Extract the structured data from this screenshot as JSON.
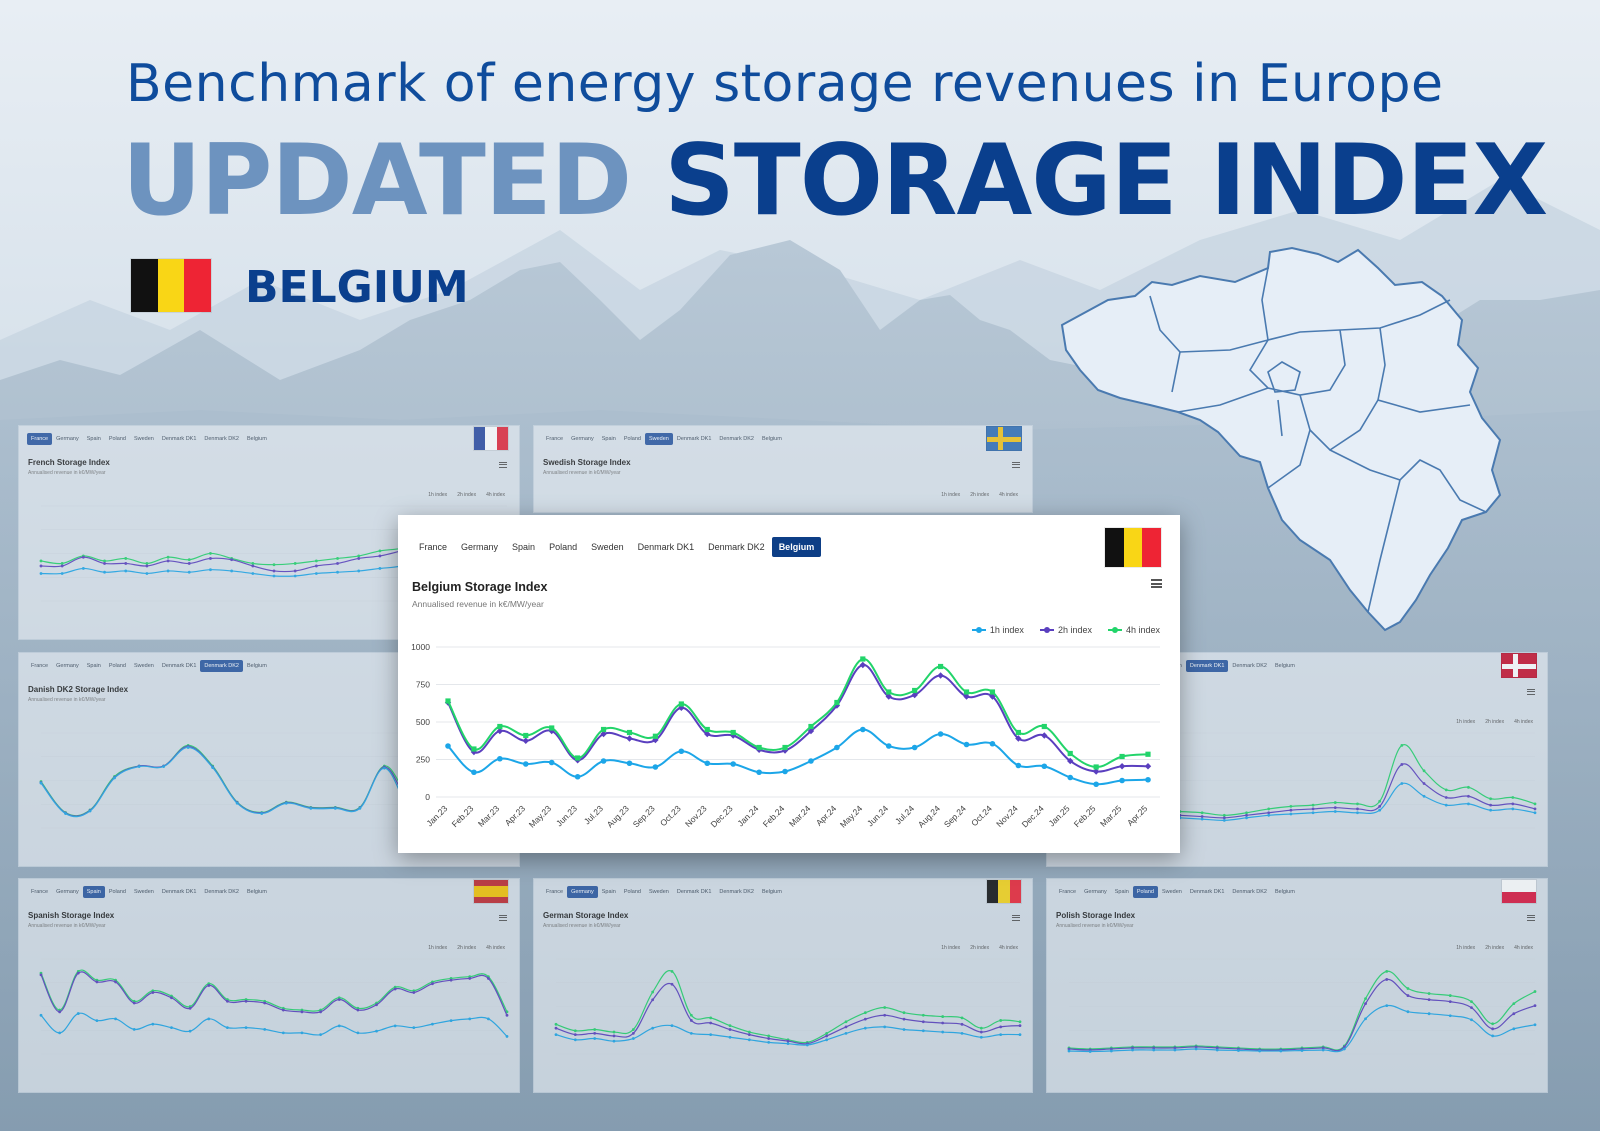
{
  "header": {
    "headline": "Benchmark of energy storage revenues in Europe",
    "title_part1": "UPDATED",
    "title_part2": "STORAGE INDEX",
    "country": "BELGIUM"
  },
  "flags": {
    "belgium": [
      "#111111",
      "#f9d616",
      "#ee2434"
    ],
    "france": [
      "#2a4aa0",
      "#ffffff",
      "#e3263a"
    ],
    "sweden": {
      "field": "#2e6db5",
      "cross": "#f2c318"
    },
    "denmark": {
      "field": "#c8102e",
      "cross": "#ffffff"
    },
    "spain": [
      "#c1272d",
      "#f5c400",
      "#c1272d"
    ],
    "poland": [
      "#ffffff",
      "#dc143c"
    ]
  },
  "tabs": [
    "France",
    "Germany",
    "Spain",
    "Poland",
    "Sweden",
    "Denmark DK1",
    "Denmark DK2",
    "Belgium"
  ],
  "legend": [
    "1h index",
    "2h index",
    "4h index"
  ],
  "colors": {
    "h1": "#1ca6e8",
    "h2": "#5a3fbf",
    "h4": "#22d46a"
  },
  "panels": {
    "france": {
      "title": "French Storage Index",
      "subtitle": "Annualised revenue in k€/MW/year",
      "active_tab": 0
    },
    "sweden": {
      "title": "Swedish Storage Index",
      "subtitle": "Annualised revenue in k€/MW/year",
      "active_tab": 4
    },
    "dk2": {
      "title": "Danish DK2 Storage Index",
      "subtitle": "Annualised revenue in k€/MW/year",
      "active_tab": 6
    },
    "dk1": {
      "title": "",
      "subtitle": "",
      "active_tab": 5
    },
    "spain": {
      "title": "Spanish Storage Index",
      "subtitle": "Annualised revenue in k€/MW/year",
      "active_tab": 2
    },
    "germany": {
      "title": "German Storage Index",
      "subtitle": "Annualised revenue in k€/MW/year",
      "active_tab": 1
    },
    "poland": {
      "title": "Polish Storage Index",
      "subtitle": "Annualised revenue in k€/MW/year",
      "active_tab": 3
    }
  },
  "main": {
    "title": "Belgium Storage Index",
    "subtitle": "Annualised revenue in k€/MW/year",
    "active_tab": 7
  },
  "chart_data": {
    "type": "line",
    "title": "Belgium Storage Index",
    "subtitle": "Annualised revenue in k€/MW/year",
    "xlabel": "",
    "ylabel": "",
    "ylim": [
      0,
      1000
    ],
    "yticks": [
      0,
      250,
      500,
      750,
      1000
    ],
    "grid": true,
    "legend": "top-right",
    "x": [
      "Jan.23",
      "Feb.23",
      "Mar.23",
      "Apr.23",
      "May.23",
      "Jun.23",
      "Jul.23",
      "Aug.23",
      "Sep.23",
      "Oct.23",
      "Nov.23",
      "Dec.23",
      "Jan.24",
      "Feb.24",
      "Mar.24",
      "Apr.24",
      "May.24",
      "Jun.24",
      "Jul.24",
      "Aug.24",
      "Sep.24",
      "Oct.24",
      "Nov.24",
      "Dec.24",
      "Jan.25",
      "Feb.25",
      "Mar.25",
      "Apr.25"
    ],
    "series": [
      {
        "name": "1h index",
        "values": [
          340,
          165,
          255,
          220,
          230,
          135,
          240,
          225,
          200,
          305,
          225,
          220,
          165,
          170,
          240,
          330,
          450,
          340,
          330,
          420,
          350,
          355,
          210,
          205,
          130,
          85,
          110,
          115
        ]
      },
      {
        "name": "2h index",
        "values": [
          630,
          300,
          440,
          375,
          440,
          245,
          420,
          390,
          380,
          595,
          420,
          410,
          315,
          310,
          440,
          610,
          880,
          670,
          680,
          810,
          670,
          670,
          390,
          410,
          240,
          170,
          205,
          205
        ]
      },
      {
        "name": "4h index",
        "values": [
          640,
          320,
          470,
          410,
          460,
          260,
          450,
          430,
          405,
          620,
          450,
          430,
          330,
          330,
          470,
          630,
          920,
          700,
          710,
          870,
          700,
          700,
          430,
          470,
          290,
          200,
          270,
          285
        ]
      }
    ]
  }
}
